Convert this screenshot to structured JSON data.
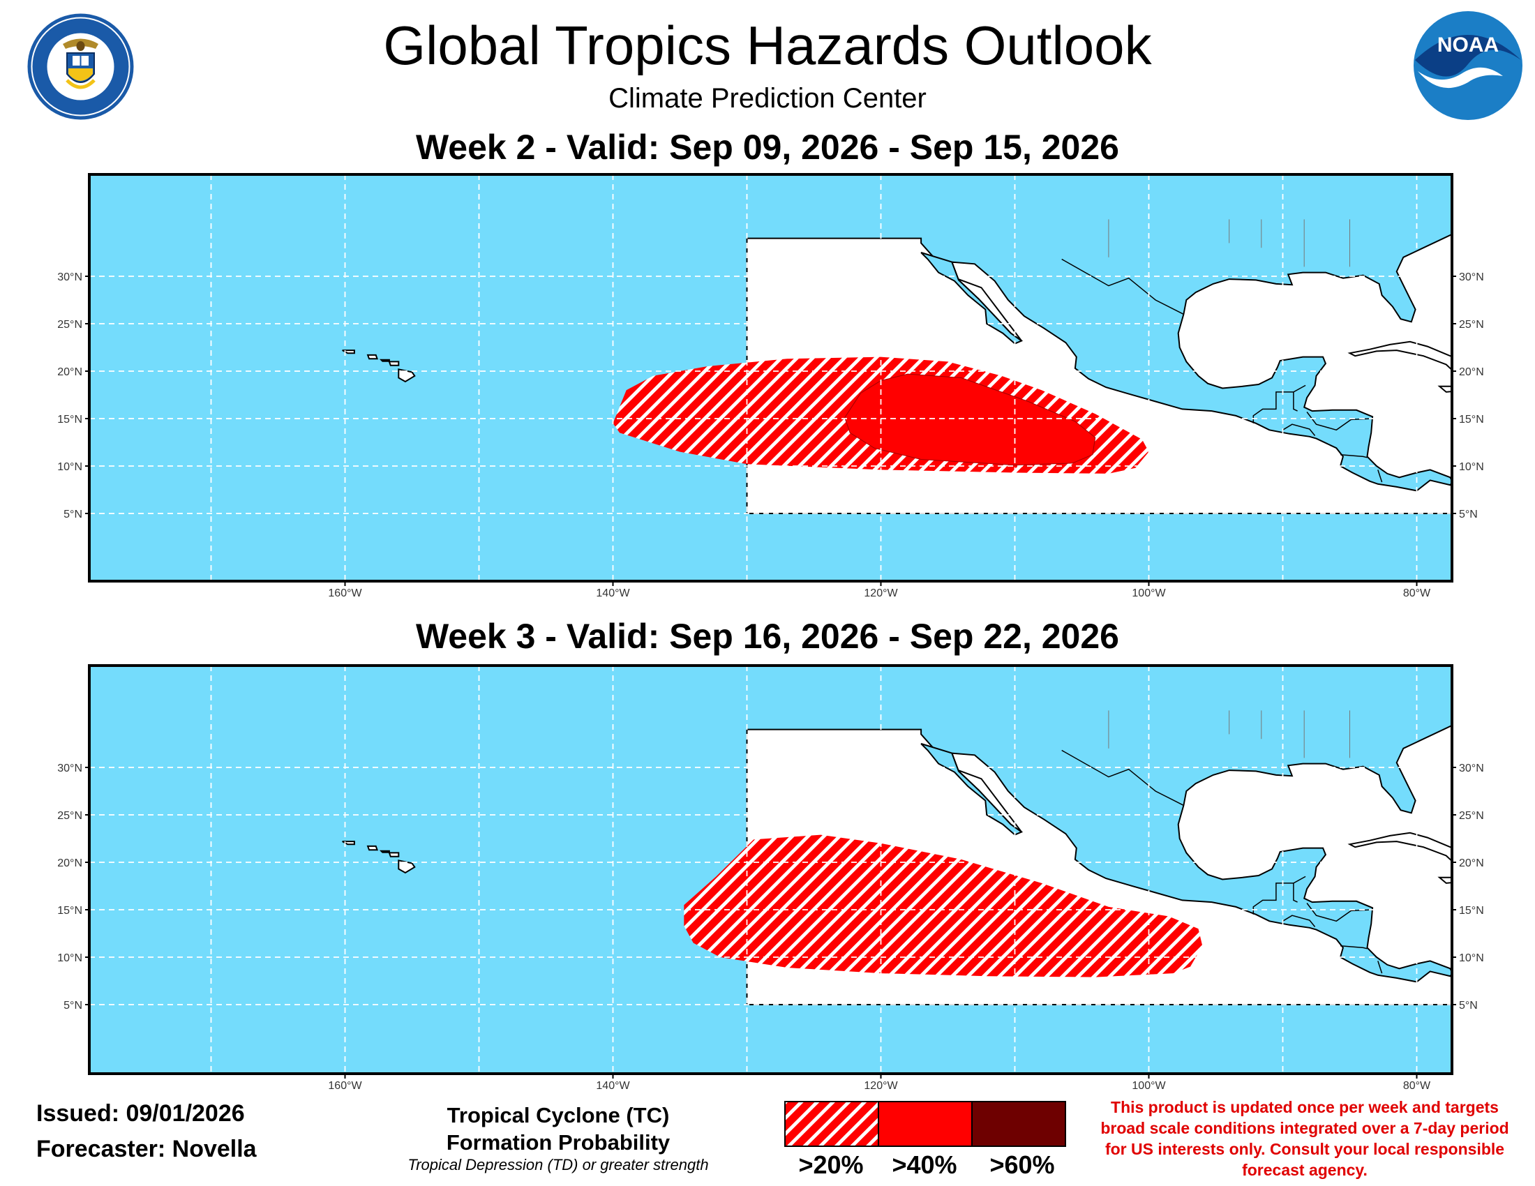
{
  "header": {
    "title": "Global Tropics Hazards Outlook",
    "subtitle": "Climate Prediction Center"
  },
  "logos": {
    "left": "department-of-commerce-seal",
    "right": "noaa-logo",
    "noaa_text": "NOAA",
    "seal_text": "DEPARTMENT OF COMMERCE · UNITED STATES OF AMERICA"
  },
  "maps": [
    {
      "title": "Week 2 - Valid: Sep 09, 2026 - Sep 15, 2026",
      "hazards": [
        {
          "category": ">20%",
          "outline_lonlat": [
            [
              -139,
              18
            ],
            [
              -137,
              19.5
            ],
            [
              -133,
              20.5
            ],
            [
              -127,
              21.3
            ],
            [
              -120,
              21.5
            ],
            [
              -115,
              21
            ],
            [
              -111,
              19.5
            ],
            [
              -108,
              18
            ],
            [
              -104,
              15.5
            ],
            [
              -100.5,
              12.8
            ],
            [
              -100,
              11.5
            ],
            [
              -101,
              9.8
            ],
            [
              -103,
              9.2
            ],
            [
              -110,
              9.3
            ],
            [
              -120,
              9.6
            ],
            [
              -130,
              10.2
            ],
            [
              -135,
              11.5
            ],
            [
              -139.5,
              13.5
            ],
            [
              -140,
              14.5
            ]
          ]
        },
        {
          "category": ">40%",
          "outline_lonlat": [
            [
              -121.5,
              17.7
            ],
            [
              -120,
              19
            ],
            [
              -118,
              19.7
            ],
            [
              -114,
              19.3
            ],
            [
              -109,
              16.8
            ],
            [
              -105.5,
              14.7
            ],
            [
              -104,
              13
            ],
            [
              -104.2,
              11.2
            ],
            [
              -105.7,
              10.3
            ],
            [
              -110,
              10.1
            ],
            [
              -117,
              10.7
            ],
            [
              -120.5,
              11.9
            ],
            [
              -122.3,
              13.5
            ],
            [
              -122.7,
              15.1
            ]
          ]
        }
      ]
    },
    {
      "title": "Week 3 - Valid: Sep 16, 2026 - Sep 22, 2026",
      "hazards": [
        {
          "category": ">20%",
          "outline_lonlat": [
            [
              -134.7,
              15.5
            ],
            [
              -132.3,
              18.5
            ],
            [
              -129.5,
              22.4
            ],
            [
              -124.5,
              22.9
            ],
            [
              -120,
              22
            ],
            [
              -114,
              20.3
            ],
            [
              -108,
              17.8
            ],
            [
              -103,
              15.3
            ],
            [
              -98.5,
              14.3
            ],
            [
              -96.3,
              13
            ],
            [
              -96,
              11.2
            ],
            [
              -96.9,
              9
            ],
            [
              -98.2,
              8.3
            ],
            [
              -104,
              7.9
            ],
            [
              -112,
              8
            ],
            [
              -120,
              8.3
            ],
            [
              -127,
              8.9
            ],
            [
              -132,
              10
            ],
            [
              -134,
              11.5
            ],
            [
              -134.7,
              13.3
            ]
          ]
        }
      ]
    }
  ],
  "axes": {
    "lat_labels": [
      "5°N",
      "10°N",
      "15°N",
      "20°N",
      "25°N",
      "30°N"
    ],
    "lon_labels": [
      "160°W",
      "140°W",
      "120°W",
      "100°W",
      "80°W"
    ]
  },
  "footer": {
    "issued": "Issued: 09/01/2026",
    "forecaster": "Forecaster: Novella",
    "legend_title_1": "Tropical Cyclone (TC)",
    "legend_title_2": "Formation Probability",
    "legend_note": "Tropical Depression (TD) or greater strength",
    "legend_items": [
      ">20%",
      ">40%",
      ">60%"
    ],
    "disclaimer": "This product is updated once per week and targets broad scale conditions integrated over a 7-day period for US interests only. Consult your local responsible forecast agency."
  },
  "colors": {
    "ocean": "#74dcfc",
    "land": "#ffffff",
    "hatch_red": "#ff0000",
    "solid_red": "#ff0000",
    "dark_red": "#6e0000",
    "disclaimer": "#e00000"
  }
}
